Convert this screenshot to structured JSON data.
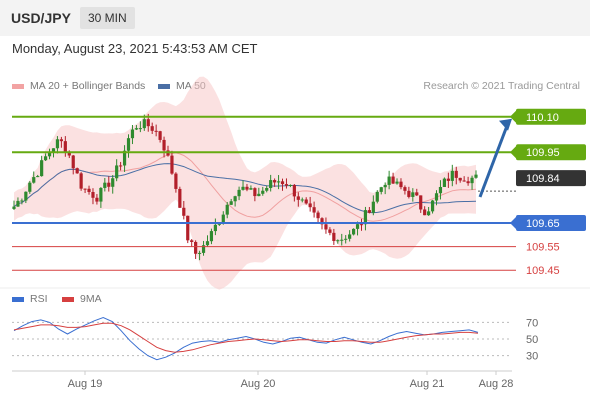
{
  "header": {
    "symbol": "USD/JPY",
    "timeframe": "30 MIN"
  },
  "datetime": "Monday, August 23, 2021 5:43:53 AM CET",
  "legend": {
    "bollinger": "MA 20 + Bollinger Bands",
    "ma50": "MA 50",
    "credit": "Research © 2021 Trading Central"
  },
  "rsi_legend": {
    "rsi": "RSI",
    "ma": "9MA"
  },
  "colors": {
    "green": "#66aa11",
    "blue": "#3a6fd1",
    "red": "#d64040",
    "bollinger": "#f7c9c9",
    "ma50": "#4a6fa5",
    "arrow": "#2e65a8"
  },
  "chart_data": [
    {
      "type": "candlestick",
      "x_ticks": [
        "Aug 19",
        "Aug 20",
        "Aug 21",
        "Aug 28"
      ],
      "ylim": [
        109.4,
        110.15
      ],
      "levels": [
        {
          "label": "110.10",
          "value": 110.1,
          "color": "green"
        },
        {
          "label": "109.95",
          "value": 109.95,
          "color": "green"
        },
        {
          "label": "109.84",
          "value": 109.84,
          "color": "dark",
          "kind": "current price"
        },
        {
          "label": "109.65",
          "value": 109.65,
          "color": "blue"
        },
        {
          "label": "109.55",
          "value": 109.55,
          "color": "red"
        },
        {
          "label": "109.45",
          "value": 109.45,
          "color": "red"
        }
      ],
      "close_path": [
        109.72,
        109.76,
        109.82,
        109.86,
        109.92,
        109.97,
        110.0,
        109.96,
        109.88,
        109.8,
        109.78,
        109.76,
        109.8,
        109.84,
        109.9,
        110.0,
        110.06,
        110.07,
        110.06,
        110.03,
        109.96,
        109.85,
        109.72,
        109.58,
        109.52,
        109.55,
        109.6,
        109.66,
        109.72,
        109.78,
        109.8,
        109.78,
        109.77,
        109.79,
        109.82,
        109.83,
        109.82,
        109.78,
        109.74,
        109.7,
        109.66,
        109.62,
        109.6,
        109.58,
        109.6,
        109.62,
        109.66,
        109.72,
        109.78,
        109.83,
        109.82,
        109.8,
        109.78,
        109.76,
        109.7,
        109.72,
        109.78,
        109.83,
        109.86,
        109.85,
        109.84,
        109.84
      ]
    },
    {
      "type": "line",
      "title": "RSI",
      "y_ticks": [
        70,
        50,
        30
      ],
      "ylim": [
        15,
        85
      ],
      "series": [
        {
          "name": "RSI",
          "color": "#3a6fd1",
          "values": [
            60,
            66,
            71,
            73,
            70,
            62,
            56,
            62,
            67,
            72,
            76,
            71,
            60,
            48,
            38,
            30,
            25,
            28,
            33,
            40,
            45,
            47,
            48,
            46,
            49,
            51,
            53,
            50,
            46,
            44,
            47,
            51,
            52,
            49,
            46,
            45,
            49,
            52,
            49,
            46,
            44,
            48,
            53,
            57,
            59,
            57,
            55,
            56,
            58,
            59,
            60,
            61,
            58
          ]
        },
        {
          "name": "9MA",
          "color": "#d64040",
          "values": [
            61,
            63,
            65,
            67,
            67,
            66,
            64,
            64,
            65,
            67,
            69,
            69,
            66,
            61,
            54,
            47,
            40,
            36,
            34,
            35,
            37,
            40,
            43,
            45,
            47,
            48,
            49,
            50,
            49,
            48,
            47,
            48,
            49,
            49,
            48,
            47,
            47,
            48,
            48,
            47,
            46,
            46,
            48,
            50,
            52,
            54,
            55,
            56,
            56,
            57,
            58,
            58,
            57
          ]
        }
      ]
    }
  ]
}
